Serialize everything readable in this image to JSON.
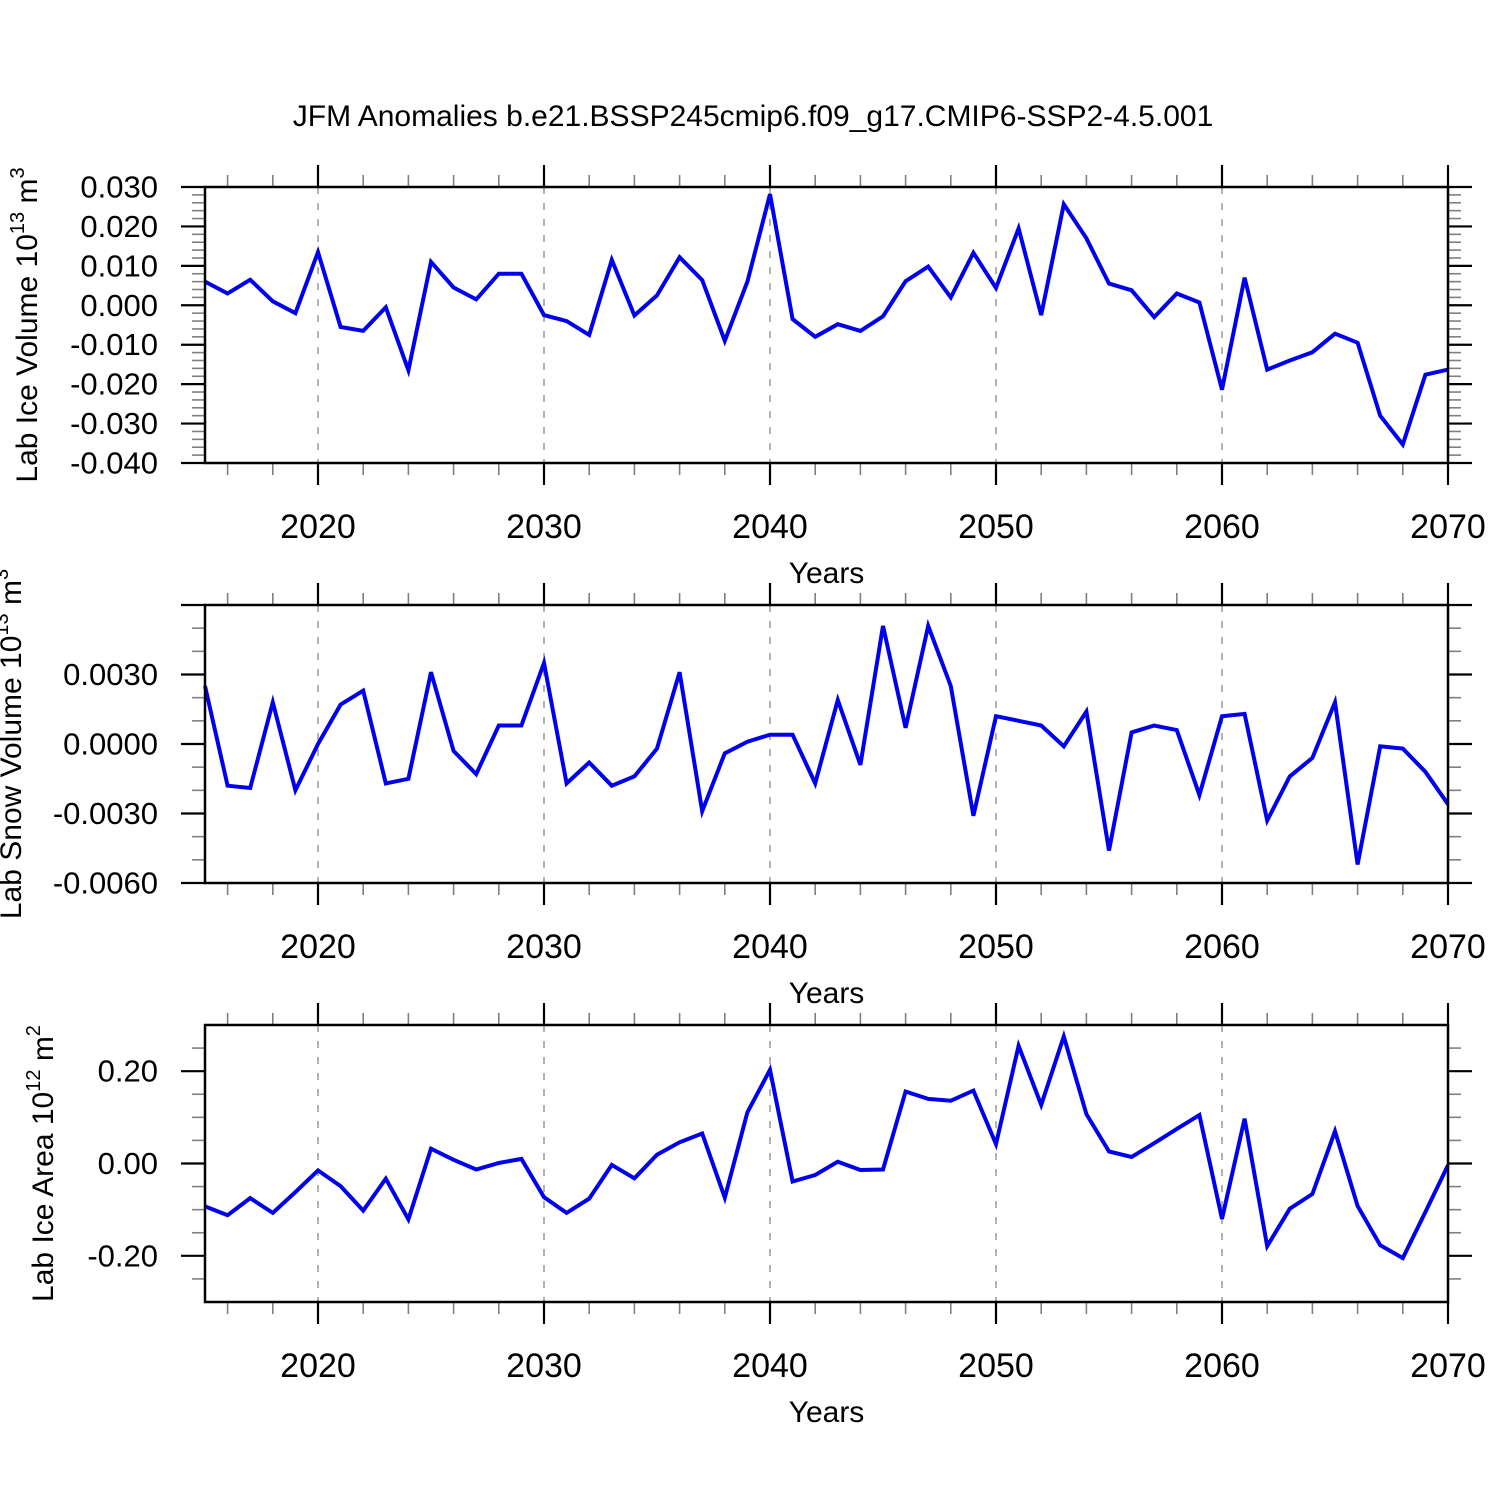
{
  "title": "JFM Anomalies b.e21.BSSP245cmip6.f09_g17.CMIP6-SSP2-4.5.001",
  "colors": {
    "line": "#0000EE",
    "frame": "#000000",
    "gridline": "#AAAAAA",
    "major_tick": "#000000",
    "minor_tick": "#808080",
    "text": "#000000",
    "background": "#FFFFFF"
  },
  "x_axis": {
    "label": "Years",
    "min": 2015,
    "max": 2070,
    "major_ticks": [
      2020,
      2030,
      2040,
      2050,
      2060,
      2070
    ],
    "tick_labels": [
      "2020",
      "2030",
      "2040",
      "2050",
      "2060",
      "2070"
    ],
    "minor_step_years": 2,
    "gridline_years": [
      2020,
      2030,
      2040,
      2050,
      2060
    ]
  },
  "chart_data": {
    "type": "line",
    "title": "JFM Anomalies b.e21.BSSP245cmip6.f09_g17.CMIP6-SSP2-4.5.001",
    "xlabel": "Years",
    "x": [
      2015,
      2016,
      2017,
      2018,
      2019,
      2020,
      2021,
      2022,
      2023,
      2024,
      2025,
      2026,
      2027,
      2028,
      2029,
      2030,
      2031,
      2032,
      2033,
      2034,
      2035,
      2036,
      2037,
      2038,
      2039,
      2040,
      2041,
      2042,
      2043,
      2044,
      2045,
      2046,
      2047,
      2048,
      2049,
      2050,
      2051,
      2052,
      2053,
      2054,
      2055,
      2056,
      2057,
      2058,
      2059,
      2060,
      2061,
      2062,
      2063,
      2064,
      2065,
      2066,
      2067,
      2068,
      2069,
      2070
    ],
    "charts": [
      {
        "name": "lab-ice-volume",
        "ylabel": "Lab Ice Volume 10^13 m^3",
        "ylabel_parts": [
          {
            "text": "Lab Ice Volume 10"
          },
          {
            "text": "13",
            "sup": true
          },
          {
            "text": " m"
          },
          {
            "text": "3",
            "sup": true
          }
        ],
        "ylim": [
          -0.04,
          0.03
        ],
        "ytick_values": [
          0.03,
          0.02,
          0.01,
          0.0,
          -0.01,
          -0.02,
          -0.03,
          -0.04
        ],
        "ytick_labels": [
          "0.030",
          "0.020",
          "0.010",
          "0.000",
          "-0.010",
          "-0.020",
          "-0.030",
          "-0.040"
        ],
        "ytick_minor_step": 0.002,
        "values": [
          0.006,
          0.003,
          0.0065,
          0.001,
          -0.002,
          0.0135,
          -0.0055,
          -0.0065,
          -0.0005,
          -0.0165,
          0.011,
          0.0045,
          0.0015,
          0.008,
          0.008,
          -0.0025,
          -0.004,
          -0.0075,
          0.0115,
          -0.0026,
          0.0025,
          0.0122,
          0.0064,
          -0.009,
          0.006,
          0.0282,
          -0.0035,
          -0.008,
          -0.0048,
          -0.0065,
          -0.0028,
          0.0061,
          0.0098,
          0.002,
          0.0133,
          0.0044,
          0.0195,
          -0.0025,
          0.0256,
          0.017,
          0.0055,
          0.0038,
          -0.003,
          0.003,
          0.0007,
          -0.0214,
          0.007,
          -0.0163,
          -0.014,
          -0.0119,
          -0.0072,
          -0.0095,
          -0.028,
          -0.0353,
          -0.0176,
          -0.0163
        ]
      },
      {
        "name": "lab-snow-volume",
        "ylabel": "Lab Snow Volume 10^13 m^3",
        "ylabel_parts": [
          {
            "text": "Lab Snow Volume 10"
          },
          {
            "text": "13",
            "sup": true
          },
          {
            "text": " m"
          },
          {
            "text": "3",
            "sup": true
          }
        ],
        "ylim": [
          -0.006,
          0.006
        ],
        "ytick_values": [
          0.006,
          0.003,
          0.0,
          -0.003,
          -0.006
        ],
        "ytick_labels": [
          "",
          "0.0030",
          "0.0000",
          "-0.0030",
          "-0.0060"
        ],
        "ytick_minor_step": 0.001,
        "values": [
          0.0025,
          -0.0018,
          -0.0019,
          0.0018,
          -0.002,
          0.0,
          0.0017,
          0.0023,
          -0.0017,
          -0.0015,
          0.0031,
          -0.0003,
          -0.0013,
          0.0008,
          0.0008,
          0.0035,
          -0.0017,
          -0.0008,
          -0.0018,
          -0.0014,
          -0.0002,
          0.0031,
          -0.0029,
          -0.0004,
          0.0001,
          0.0004,
          0.0004,
          -0.0017,
          0.0019,
          -0.0009,
          0.0051,
          0.0007,
          0.0051,
          0.0025,
          -0.0031,
          0.0012,
          0.001,
          0.0008,
          -0.0001,
          0.0014,
          -0.0046,
          0.0005,
          0.0008,
          0.0006,
          -0.0022,
          0.0012,
          0.0013,
          -0.0033,
          -0.0014,
          -0.0006,
          0.0018,
          -0.0052,
          -0.0001,
          -0.0002,
          -0.0012,
          -0.0026
        ]
      },
      {
        "name": "lab-ice-area",
        "ylabel": "Lab Ice Area 10^12 m^2",
        "ylabel_parts": [
          {
            "text": "Lab Ice Area 10"
          },
          {
            "text": "12",
            "sup": true
          },
          {
            "text": " m"
          },
          {
            "text": "2",
            "sup": true
          }
        ],
        "ylim": [
          -0.3,
          0.3
        ],
        "ytick_values": [
          0.2,
          0.0,
          -0.2
        ],
        "ytick_labels": [
          "0.20",
          "0.00",
          "-0.20"
        ],
        "ytick_minor_step": 0.05,
        "values": [
          -0.093,
          -0.112,
          -0.075,
          -0.107,
          -0.062,
          -0.015,
          -0.049,
          -0.102,
          -0.033,
          -0.121,
          0.032,
          0.008,
          -0.013,
          0.001,
          0.01,
          -0.073,
          -0.107,
          -0.076,
          -0.003,
          -0.032,
          0.019,
          0.046,
          0.065,
          -0.074,
          0.111,
          0.203,
          -0.039,
          -0.025,
          0.004,
          -0.014,
          -0.013,
          0.156,
          0.14,
          0.136,
          0.158,
          0.042,
          0.255,
          0.127,
          0.275,
          0.107,
          0.026,
          0.014,
          0.044,
          0.075,
          0.105,
          -0.12,
          0.097,
          -0.179,
          -0.098,
          -0.066,
          0.07,
          -0.092,
          -0.177,
          -0.205,
          -0.105,
          -0.004
        ]
      }
    ]
  }
}
